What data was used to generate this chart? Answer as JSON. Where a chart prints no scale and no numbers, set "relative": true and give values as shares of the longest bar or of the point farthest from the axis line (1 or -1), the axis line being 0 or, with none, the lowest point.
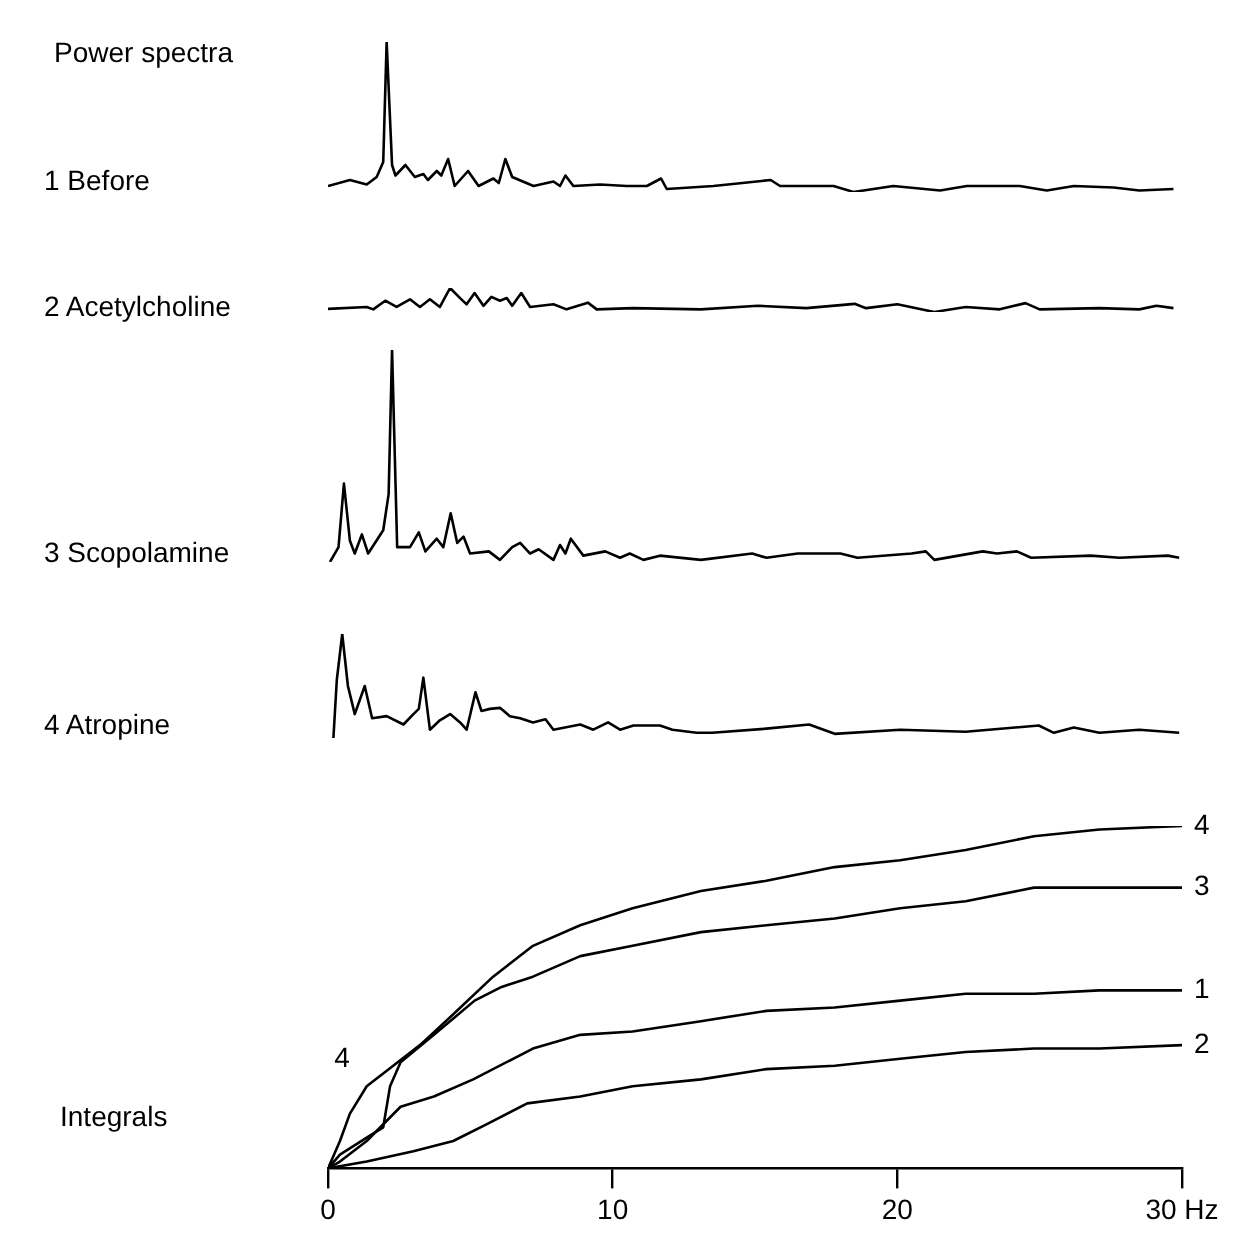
{
  "chart_data": [
    {
      "type": "line",
      "title": "Power spectra",
      "relative": true,
      "xlim": [
        0,
        30
      ],
      "tick_labels": false,
      "x": [
        0,
        0.77,
        1.36,
        1.71,
        1.94,
        2.06,
        2.25,
        2.37,
        2.72,
        3.05,
        3.35,
        3.51,
        3.82,
        3.98,
        4.22,
        4.45,
        4.92,
        5.29,
        5.81,
        6.0,
        6.23,
        6.47,
        7.22,
        7.92,
        8.15,
        8.34,
        8.62,
        9.56,
        10.5,
        11.2,
        11.7,
        11.9,
        13.54,
        15.55,
        15.88,
        17.76,
        18.46,
        19.86,
        21.5,
        22.44,
        24.3,
        25.25,
        26.2,
        27.6,
        28.5,
        29.7
      ],
      "series": [
        {
          "name": "1 Before",
          "color": "#000000",
          "values": [
            0.04,
            0.08,
            0.05,
            0.1,
            0.2,
            1,
            0.18,
            0.11,
            0.18,
            0.1,
            0.12,
            0.08,
            0.14,
            0.11,
            0.22,
            0.04,
            0.14,
            0.04,
            0.09,
            0.06,
            0.22,
            0.1,
            0.04,
            0.07,
            0.04,
            0.11,
            0.04,
            0.05,
            0.04,
            0.04,
            0.09,
            0.02,
            0.04,
            0.08,
            0.04,
            0.04,
            0,
            0.04,
            0.01,
            0.04,
            0.04,
            0.01,
            0.04,
            0.03,
            0.01,
            0.02
          ]
        }
      ]
    },
    {
      "type": "line",
      "relative": true,
      "xlim": [
        0,
        30
      ],
      "tick_labels": false,
      "x": [
        0,
        1.36,
        1.59,
        2.01,
        2.41,
        2.88,
        3.23,
        3.58,
        3.93,
        4.29,
        4.64,
        4.87,
        5.15,
        5.46,
        5.74,
        6.04,
        6.28,
        6.47,
        6.79,
        7.1,
        7.92,
        8.38,
        9.13,
        9.44,
        10.7,
        13.1,
        15.1,
        16.8,
        18.5,
        18.9,
        20.0,
        21.3,
        22.4,
        23.6,
        24.5,
        25.0,
        27.1,
        28.5,
        29.1,
        29.7
      ],
      "series": [
        {
          "name": "2 Acetylcholine",
          "color": "#000000",
          "values": [
            0.13,
            0.21,
            0.11,
            0.47,
            0.21,
            0.53,
            0.21,
            0.53,
            0.21,
            1,
            0.58,
            0.32,
            0.79,
            0.26,
            0.63,
            0.47,
            0.58,
            0.26,
            0.79,
            0.21,
            0.32,
            0.11,
            0.39,
            0.11,
            0.16,
            0.11,
            0.26,
            0.16,
            0.34,
            0.16,
            0.32,
            0,
            0.21,
            0.11,
            0.37,
            0.11,
            0.16,
            0.11,
            0.26,
            0.16
          ]
        }
      ]
    },
    {
      "type": "line",
      "relative": true,
      "xlim": [
        0,
        30
      ],
      "tick_labels": false,
      "x": [
        0.07,
        0.37,
        0.56,
        0.77,
        0.94,
        1.19,
        1.41,
        1.94,
        2.13,
        2.25,
        2.43,
        2.88,
        3.19,
        3.42,
        3.82,
        4.05,
        4.31,
        4.54,
        4.76,
        4.99,
        5.65,
        6.04,
        6.47,
        6.75,
        7.1,
        7.4,
        7.92,
        8.15,
        8.34,
        8.53,
        8.97,
        9.74,
        10.26,
        10.6,
        11.08,
        11.66,
        13.1,
        14.9,
        15.4,
        16.5,
        17.5,
        18.0,
        18.6,
        20.5,
        21.0,
        21.3,
        23.0,
        23.5,
        24.2,
        24.7,
        26.8,
        27.8,
        29.5,
        29.9
      ],
      "series": [
        {
          "name": "3 Scopolamine",
          "color": "#000000",
          "values": [
            0,
            0.07,
            0.37,
            0.1,
            0.04,
            0.13,
            0.04,
            0.15,
            0.32,
            1,
            0.07,
            0.07,
            0.14,
            0.05,
            0.11,
            0.07,
            0.23,
            0.09,
            0.12,
            0.04,
            0.05,
            0.01,
            0.07,
            0.09,
            0.04,
            0.06,
            0.01,
            0.08,
            0.04,
            0.11,
            0.03,
            0.05,
            0.02,
            0.04,
            0.01,
            0.03,
            0.01,
            0.04,
            0.02,
            0.04,
            0.04,
            0.04,
            0.02,
            0.04,
            0.05,
            0.01,
            0.05,
            0.04,
            0.05,
            0.02,
            0.03,
            0.02,
            0.03,
            0.02
          ]
        }
      ]
    },
    {
      "type": "line",
      "relative": true,
      "xlim": [
        0,
        30
      ],
      "tick_labels": false,
      "x": [
        0.19,
        0.31,
        0.5,
        0.7,
        0.94,
        1.29,
        1.55,
        2.06,
        2.65,
        3.0,
        3.19,
        3.35,
        3.58,
        3.93,
        4.29,
        4.64,
        4.87,
        5.18,
        5.39,
        5.69,
        6.04,
        6.39,
        6.75,
        7.2,
        7.64,
        7.92,
        8.86,
        9.32,
        9.84,
        10.26,
        10.73,
        11.66,
        12.1,
        12.95,
        13.5,
        15.4,
        16.9,
        17.8,
        20.1,
        22.4,
        24.97,
        25.5,
        26.2,
        27.1,
        28.5,
        29.9
      ],
      "series": [
        {
          "name": "4 Atropine",
          "color": "#000000",
          "values": [
            0,
            0.56,
            1,
            0.5,
            0.23,
            0.5,
            0.19,
            0.21,
            0.13,
            0.23,
            0.28,
            0.58,
            0.08,
            0.17,
            0.23,
            0.15,
            0.08,
            0.44,
            0.26,
            0.28,
            0.29,
            0.21,
            0.19,
            0.15,
            0.18,
            0.08,
            0.13,
            0.08,
            0.15,
            0.08,
            0.12,
            0.12,
            0.08,
            0.05,
            0.05,
            0.09,
            0.13,
            0.04,
            0.08,
            0.06,
            0.12,
            0.05,
            0.1,
            0.05,
            0.08,
            0.05
          ]
        }
      ]
    },
    {
      "type": "line",
      "title": "Integrals",
      "relative": true,
      "xlim": [
        0,
        30
      ],
      "xticks": [
        0,
        10,
        20,
        {
          "value": 30,
          "label": "30 Hz"
        }
      ],
      "annotations": [
        "4"
      ],
      "series": [
        {
          "name": "4",
          "color": "#000000",
          "x": [
            0,
            0.42,
            0.77,
            1.36,
            2.29,
            3.23,
            4.4,
            5.8,
            7.2,
            8.86,
            10.7,
            13.1,
            15.4,
            17.8,
            20.1,
            22.4,
            24.8,
            27.1,
            30
          ],
          "values": [
            0,
            0.08,
            0.16,
            0.24,
            0.3,
            0.36,
            0.45,
            0.56,
            0.65,
            0.71,
            0.76,
            0.81,
            0.84,
            0.88,
            0.9,
            0.93,
            0.97,
            0.99,
            1
          ]
        },
        {
          "name": "3",
          "color": "#000000",
          "x": [
            0,
            0.42,
            1.36,
            1.94,
            2.18,
            2.55,
            3.72,
            5.15,
            6.1,
            7.2,
            8.86,
            10.7,
            13.1,
            15.4,
            17.8,
            20.1,
            22.4,
            24.8,
            27.1,
            30
          ],
          "values": [
            0,
            0.04,
            0.09,
            0.12,
            0.24,
            0.31,
            0.39,
            0.49,
            0.53,
            0.56,
            0.62,
            0.65,
            0.69,
            0.71,
            0.73,
            0.76,
            0.78,
            0.82,
            0.82,
            0.82
          ]
        },
        {
          "name": "1",
          "color": "#000000",
          "x": [
            0,
            0.42,
            1.36,
            2.55,
            3.72,
            5.1,
            7.2,
            8.86,
            10.7,
            13.1,
            15.4,
            17.8,
            20.1,
            22.4,
            24.8,
            27.1,
            30
          ],
          "values": [
            0,
            0.02,
            0.08,
            0.18,
            0.21,
            0.26,
            0.35,
            0.39,
            0.4,
            0.43,
            0.46,
            0.47,
            0.49,
            0.51,
            0.51,
            0.52,
            0.52
          ]
        },
        {
          "name": "2",
          "color": "#000000",
          "x": [
            0,
            1.36,
            3.0,
            4.4,
            5.6,
            7.0,
            8.86,
            10.7,
            13.1,
            15.4,
            17.8,
            20.1,
            22.4,
            24.8,
            27.1,
            30
          ],
          "values": [
            0,
            0.02,
            0.05,
            0.08,
            0.13,
            0.19,
            0.21,
            0.24,
            0.26,
            0.29,
            0.3,
            0.32,
            0.34,
            0.35,
            0.35,
            0.36
          ]
        }
      ]
    }
  ]
}
